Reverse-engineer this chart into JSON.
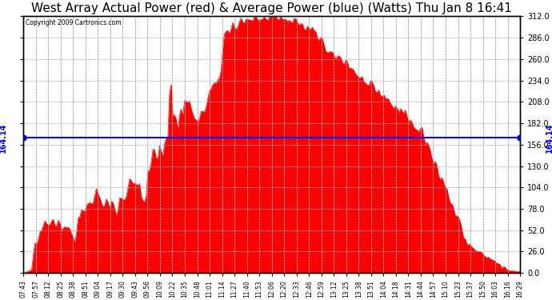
{
  "title": "West Array Actual Power (red) & Average Power (blue) (Watts) Thu Jan 8 16:41",
  "copyright": "Copyright 2009 Cartronics.com",
  "average_power": 164.14,
  "y_ticks": [
    0.0,
    26.0,
    52.0,
    78.0,
    104.0,
    130.0,
    156.0,
    182.0,
    208.0,
    234.0,
    260.0,
    286.0,
    312.0
  ],
  "y_max": 312.0,
  "y_min": 0.0,
  "fill_color": "#FF0000",
  "line_color": "#FF0000",
  "avg_line_color": "#0000FF",
  "background_color": "#FFFFFF",
  "plot_bg_color": "#FF0000",
  "grid_color": "#FFFFFF",
  "title_fontsize": 11,
  "avg_label": "164.14",
  "x_labels": [
    "07:43",
    "07:57",
    "08:12",
    "08:25",
    "08:38",
    "08:51",
    "09:04",
    "09:17",
    "09:30",
    "09:43",
    "09:56",
    "10:09",
    "10:22",
    "10:35",
    "10:48",
    "11:01",
    "11:14",
    "11:27",
    "11:40",
    "11:53",
    "12:06",
    "12:20",
    "12:33",
    "12:46",
    "12:59",
    "13:12",
    "13:25",
    "13:38",
    "13:51",
    "14:04",
    "14:18",
    "14:31",
    "14:44",
    "14:57",
    "15:10",
    "15:23",
    "15:37",
    "15:50",
    "16:03",
    "16:16",
    "16:29"
  ]
}
